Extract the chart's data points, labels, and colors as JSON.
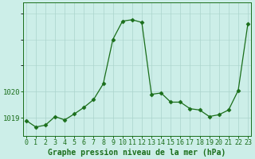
{
  "hours": [
    0,
    1,
    2,
    3,
    4,
    5,
    6,
    7,
    8,
    9,
    10,
    11,
    12,
    13,
    14,
    15,
    16,
    17,
    18,
    19,
    20,
    21,
    22,
    23
  ],
  "pressure": [
    1018.9,
    1018.65,
    1018.72,
    1019.05,
    1018.92,
    1019.15,
    1019.4,
    1019.7,
    1020.3,
    1022.0,
    1022.7,
    1022.75,
    1022.65,
    1019.9,
    1019.95,
    1019.6,
    1019.6,
    1019.35,
    1019.3,
    1019.05,
    1019.12,
    1019.3,
    1020.05,
    1022.6
  ],
  "line_color": "#1a6e1a",
  "marker": "D",
  "marker_size": 2.5,
  "bg_color": "#cceee8",
  "grid_color": "#aad4cc",
  "ylabel_ticks": [
    1019,
    1020
  ],
  "ylim": [
    1018.3,
    1023.4
  ],
  "xlim": [
    -0.3,
    23.3
  ],
  "xlabel": "Graphe pression niveau de la mer (hPa)",
  "xlabel_fontsize": 7,
  "tick_fontsize": 6.5
}
